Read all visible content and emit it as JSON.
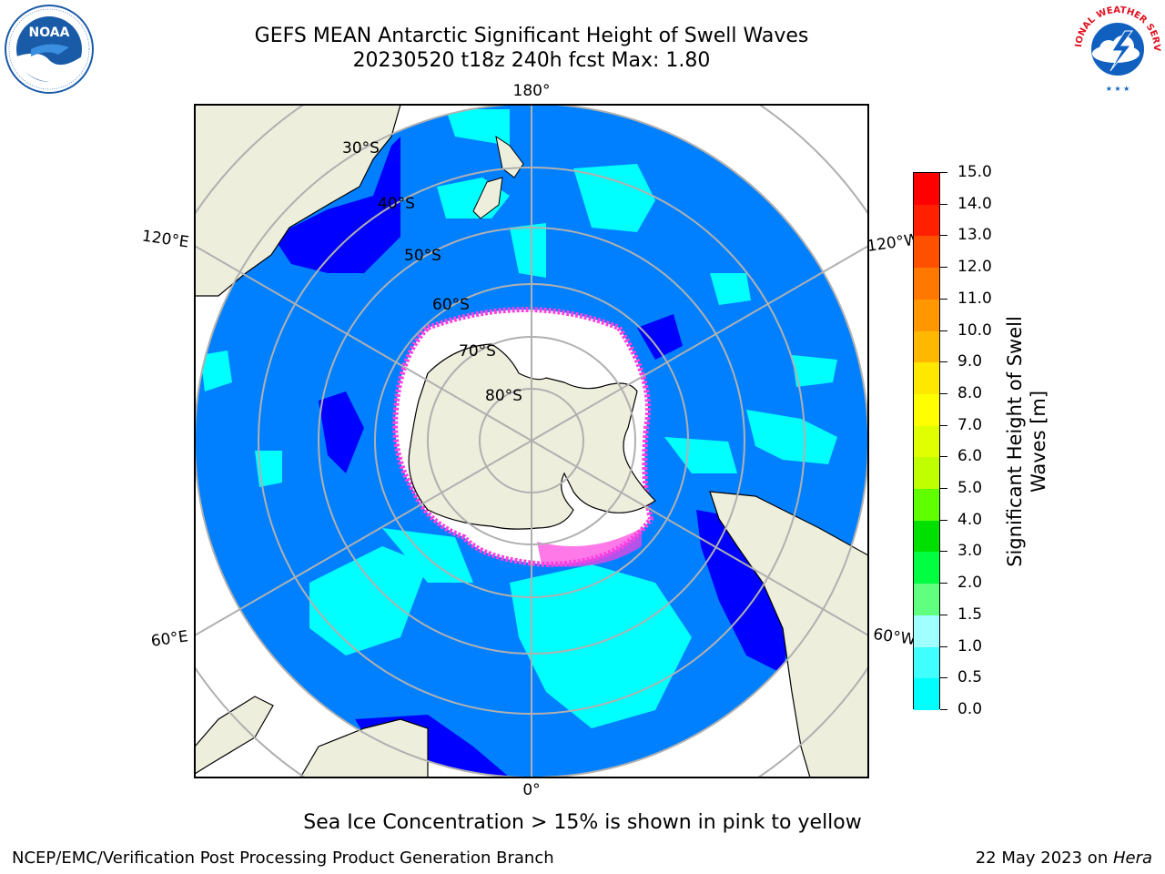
{
  "title": {
    "line1": "GEFS MEAN Antarctic Significant Height of Swell Waves",
    "line2": "20230520 t18z 240h fcst   Max: 1.80"
  },
  "logos": {
    "left": "NOAA",
    "right": "NATIONAL WEATHER SERVICE"
  },
  "map": {
    "projection": "south-polar-stereographic",
    "longitude_labels": [
      "180°",
      "120°E",
      "120°W",
      "60°E",
      "60°W",
      "0°"
    ],
    "latitude_labels": [
      "30°S",
      "40°S",
      "50°S",
      "60°S",
      "70°S",
      "80°S"
    ],
    "colors": {
      "ocean_low": "#0080ff",
      "ocean_very_low": "#0000ff",
      "ocean_moderate": "#00ffff",
      "land": "#eeeedd",
      "sea_ice": "#ffffff",
      "sea_ice_edge": "#ff40e0",
      "grid": "#b0b0b0"
    }
  },
  "colorbar": {
    "label": "Significant Height of Swell Waves [m]",
    "label_line1": "Significant Height of Swell",
    "label_line2": "Waves [m]",
    "ticks": [
      "15.0",
      "14.0",
      "13.0",
      "12.0",
      "11.0",
      "10.0",
      "9.0",
      "8.0",
      "7.0",
      "6.0",
      "5.0",
      "4.0",
      "3.0",
      "2.0",
      "1.5",
      "1.0",
      "0.5",
      "0.0"
    ],
    "colors": [
      "#ff0000",
      "#ff2000",
      "#ff5000",
      "#ff7800",
      "#ff9800",
      "#ffb800",
      "#ffe800",
      "#ffff00",
      "#e0ff00",
      "#c0ff00",
      "#60ff00",
      "#00e000",
      "#00ff40",
      "#60ff80",
      "#a0ffff",
      "#40ffff",
      "#00ffff",
      "#0080ff",
      "#0000ff"
    ]
  },
  "note": "Sea Ice Concentration > 15% is shown in pink to yellow",
  "footer": {
    "left": "NCEP/EMC/Verification Post Processing Product Generation Branch",
    "right_prefix": "22 May 2023 on ",
    "right_host": "Hera"
  }
}
